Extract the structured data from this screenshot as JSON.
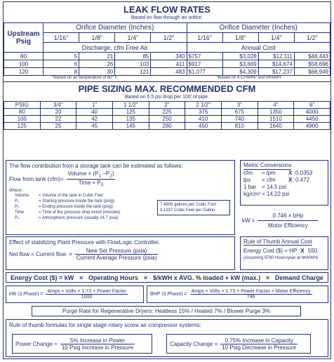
{
  "leak": {
    "title": "LEAK FLOW RATES",
    "subtitle": "Based on flow through an orifice.",
    "col_upstream": "Upstream",
    "col_psig": "Psig",
    "orifice_header": "Orifice Diameter (Inches)",
    "sizes": [
      "1/16\"",
      "1/8\"",
      "1/4\"",
      "1/2\""
    ],
    "discharge_header": "Discharge, cfm Free Air",
    "annual_header": "Annual Cost",
    "rows": [
      {
        "psig": "80",
        "d": [
          "5",
          "21",
          "85",
          "340"
        ],
        "c": [
          "$757",
          "$3,028",
          "$12,111",
          "$48,443"
        ]
      },
      {
        "psig": "100",
        "d": [
          "6",
          "26",
          "103",
          "411"
        ],
        "c": [
          "$917",
          "$3,669",
          "$14,674",
          "$58,696"
        ]
      },
      {
        "psig": "120",
        "d": [
          "8",
          "30",
          "121",
          "483"
        ],
        "c": [
          "$1,077",
          "$4,309",
          "$17,237",
          "$68,949"
        ]
      }
    ],
    "note_left": "*Based on air temperature of 60° F.",
    "note_right": "*Based on 4 CFM/HP and 8¢/kWH"
  },
  "pipe": {
    "title": "PIPE SIZING MAX. RECOMMENDED CFM",
    "subtitle": "Based on 0.5 psi drop per 100' of pipe.",
    "headers": [
      "PSIG",
      "3/4\"",
      "1\"",
      "1 1/2\"",
      "2\"",
      "2 1/2\"",
      "3\"",
      "4\"",
      "6\""
    ],
    "rows": [
      [
        "80",
        "20",
        "40",
        "125",
        "225",
        "375",
        "675",
        "1350",
        "4000"
      ],
      [
        "100",
        "22",
        "42",
        "135",
        "250",
        "410",
        "740",
        "1510",
        "4450"
      ],
      [
        "125",
        "25",
        "45",
        "145",
        "280",
        "450",
        "810",
        "1640",
        "4900"
      ]
    ]
  },
  "tank": {
    "intro": "The flow contribution from a storage tank can be estimated as follows:",
    "lhs": "Flow from tank (cfm)=",
    "num": "Volume × (P",
    "num_sub1": "1",
    "num_mid": " –P",
    "num_sub2": "2",
    "num_end": ")",
    "den": "Time × P",
    "den_sub": "0",
    "where": "Where:",
    "defs": [
      {
        "k": "Volume",
        "v": "= Volume of the tank in Cubic Feet"
      },
      {
        "k": "P₁",
        "v": "= Starting pressure inside the tank (psig)"
      },
      {
        "k": "P₂",
        "v": "= Ending pressure inside the tank (psig)"
      },
      {
        "k": "Time",
        "v": "= Time of the pressure drop event (minutes)"
      },
      {
        "k": "P₀",
        "v": "= Atmospheric pressure (usually 14.7 psia)"
      }
    ],
    "gallons1": "7.4805 gallons per Cubic Foot",
    "gallons2": "0.1337 Cubic Feet per Gallon"
  },
  "metric": {
    "title": "Metric Conversions",
    "rows": [
      {
        "a": "cfm",
        "b": "= lpm",
        "x": "X",
        "c": "0.0353"
      },
      {
        "a": "lps",
        "b": "= cfm",
        "x": "X",
        "c": "0.472"
      },
      {
        "a": "1 bar",
        "b": "= 14.5 psi",
        "x": "",
        "c": ""
      },
      {
        "a": "kg/cm²",
        "b": "= 14.22 psi",
        "x": "",
        "c": ""
      }
    ]
  },
  "kw": {
    "lhs": "kW =",
    "num": "0.746 × bHp",
    "den": "Motor Efficiency"
  },
  "flowlogic": {
    "title": "Effect of stabilizing Plant Pressure with FlowLogic Controller.",
    "lhs": "Net flow = Current flow",
    "x": "×",
    "num": "New Set Pressure (psia)",
    "den": "Current Average Pressure (psia)"
  },
  "rot": {
    "title": "Rule of Thumb Annual Cost",
    "eq": "Energy Cost ($) = HP",
    "x": "X",
    "val": "550",
    "note": "(Assuming 8760 Hours/year at 8¢/kWH)"
  },
  "energy": {
    "parts": [
      "Energy Cost ($) = kW",
      "×",
      "Operating Hours",
      "×",
      "$/kWH x AVG. % loaded + kW (max.)",
      "×",
      "Demand Charge"
    ]
  },
  "kw3": {
    "lhs": "kW (3 Phase) =",
    "num": "Amps × Volts × 1.73 × Power Factor",
    "den": "1000"
  },
  "bhp3": {
    "lhs": "BHP (3 Phase) =",
    "num": "Amps × Volts × 1.73 × Power Factor × Motor Efficiency",
    "den": "746"
  },
  "purge": {
    "text": "Purge Rate for Regenerative Dryers: Heatless 15% / Heated 7% / Blower Purge 3%"
  },
  "rotary": {
    "title": "Rule of thumb formulas for single stage rotary screw air compressor systems:",
    "power_lhs": "Power Change =",
    "power_num": "5% Increase in Power",
    "power_den": "10 Psig Increase in Pressure",
    "cap_lhs": "Capacity Change =",
    "cap_num": "0.75% Increase in Capacity",
    "cap_den": "10 Psig Decrease in Pressure"
  }
}
